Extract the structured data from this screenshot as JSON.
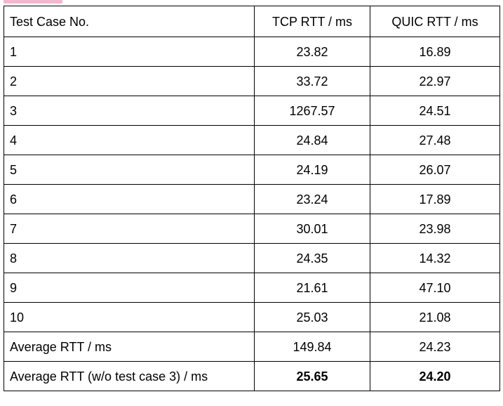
{
  "table": {
    "headers": [
      "Test Case No.",
      "TCP RTT / ms",
      "QUIC RTT / ms"
    ],
    "rows": [
      {
        "label": "1",
        "tcp": "23.82",
        "quic": "16.89"
      },
      {
        "label": "2",
        "tcp": "33.72",
        "quic": "22.97"
      },
      {
        "label": "3",
        "tcp": "1267.57",
        "quic": "24.51"
      },
      {
        "label": "4",
        "tcp": "24.84",
        "quic": "27.48"
      },
      {
        "label": "5",
        "tcp": "24.19",
        "quic": "26.07"
      },
      {
        "label": "6",
        "tcp": "23.24",
        "quic": "17.89"
      },
      {
        "label": "7",
        "tcp": "30.01",
        "quic": "23.98"
      },
      {
        "label": "8",
        "tcp": "24.35",
        "quic": "14.32"
      },
      {
        "label": "9",
        "tcp": "21.61",
        "quic": "47.10"
      },
      {
        "label": "10",
        "tcp": "25.03",
        "quic": "21.08"
      },
      {
        "label": "Average RTT / ms",
        "tcp": "149.84",
        "quic": "24.23"
      },
      {
        "label": "Average RTT (w/o test case 3) / ms",
        "tcp": "25.65",
        "quic": "24.20"
      }
    ]
  },
  "colors": {
    "border": "#000000",
    "highlight": "#f3b6cf",
    "background": "#ffffff"
  }
}
